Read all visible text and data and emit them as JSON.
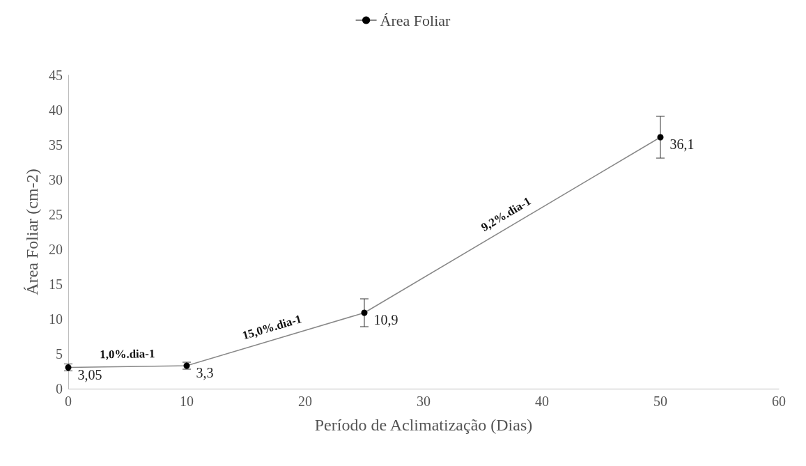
{
  "chart_data": {
    "type": "line",
    "xlabel": "Período de Aclimatização (Dias)",
    "ylabel": "Área Foliar (cm-2)",
    "x": [
      0,
      10,
      25,
      50
    ],
    "series": [
      {
        "name": "Área Foliar",
        "color": "#000000",
        "values": [
          3.05,
          3.3,
          10.9,
          36.1
        ],
        "errors": [
          0.5,
          0.5,
          2,
          3
        ],
        "value_labels": [
          "3,05",
          "3,3",
          "10,9",
          "36,1"
        ]
      }
    ],
    "xlim": [
      0,
      60
    ],
    "xticks": [
      0,
      10,
      20,
      30,
      40,
      50,
      60
    ],
    "ylim": [
      0,
      45
    ],
    "yticks": [
      0,
      5,
      10,
      15,
      20,
      25,
      30,
      35,
      40,
      45
    ],
    "annotations": [
      "1,0%.dia-1",
      "15,0%.dia-1",
      "9,2%.dia-1"
    ],
    "legend": "top",
    "grid": false,
    "marker": "circle",
    "line_style": "solid"
  }
}
